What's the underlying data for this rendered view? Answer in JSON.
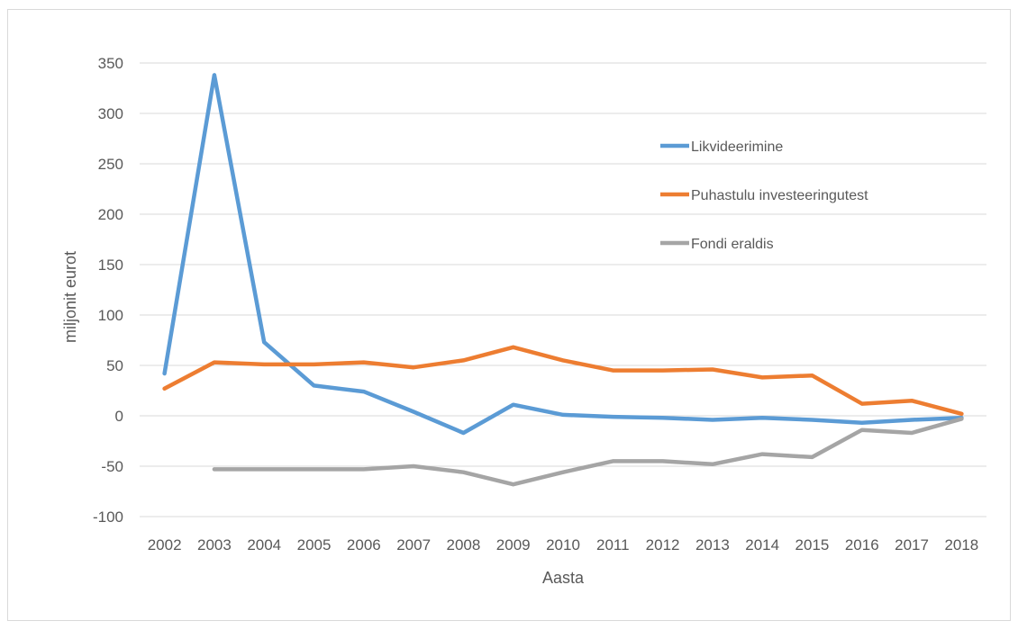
{
  "chart_data": {
    "type": "line",
    "title": "",
    "xlabel": "Aasta",
    "ylabel": "miljonit eurot",
    "ylim": [
      -100,
      350
    ],
    "yticks": [
      350,
      300,
      250,
      200,
      150,
      100,
      50,
      0,
      -50,
      -100
    ],
    "grid": true,
    "legend_position": "top-right",
    "categories": [
      "2002",
      "2003",
      "2004",
      "2005",
      "2006",
      "2007",
      "2008",
      "2009",
      "2010",
      "2011",
      "2012",
      "2013",
      "2014",
      "2015",
      "2016",
      "2017",
      "2018"
    ],
    "series": [
      {
        "name": "Likvideerimine",
        "color": "#5b9bd5",
        "values": [
          42,
          338,
          73,
          30,
          24,
          4,
          -17,
          11,
          1,
          -1,
          -2,
          -4,
          -2,
          -4,
          -7,
          -4,
          -2
        ]
      },
      {
        "name": "Puhastulu investeeringutest",
        "color": "#ed7d31",
        "values": [
          27,
          53,
          51,
          51,
          53,
          48,
          55,
          68,
          55,
          45,
          45,
          46,
          38,
          40,
          12,
          15,
          2
        ]
      },
      {
        "name": "Fondi eraldis",
        "color": "#a5a5a5",
        "values": [
          null,
          -53,
          -53,
          -53,
          -53,
          -50,
          -56,
          -68,
          -56,
          -45,
          -45,
          -48,
          -38,
          -41,
          -14,
          -17,
          -3
        ]
      }
    ]
  }
}
